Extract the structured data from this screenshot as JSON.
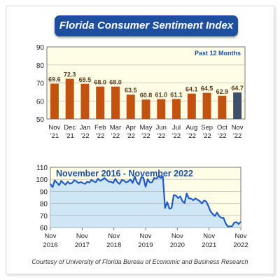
{
  "title": "Florida Consumer Sentiment Index",
  "credit": "Courtesy of University of Florida Bureau of Economic and Business Research",
  "colors": {
    "bar": "#c2520f",
    "bar_latest": "#3d4f6a",
    "panel_bg": "#fffde6",
    "line": "#1f5bc4",
    "area": "#cfe6f7",
    "header_bg": "#1d4f9e",
    "panel_title": "#1d4f9e"
  },
  "chart_data": [
    {
      "type": "bar",
      "annotation": "Past 12 Months",
      "categories": [
        [
          "Nov",
          "'21"
        ],
        [
          "Dec",
          "'21"
        ],
        [
          "Jan",
          "'22"
        ],
        [
          "Feb",
          "'22"
        ],
        [
          "Mar",
          "'22"
        ],
        [
          "Apr",
          "'22"
        ],
        [
          "May",
          "'22"
        ],
        [
          "Jun",
          "'22"
        ],
        [
          "Jul",
          "'22"
        ],
        [
          "Aug",
          "'22"
        ],
        [
          "Sep",
          "'22"
        ],
        [
          "Oct",
          "'22"
        ],
        [
          "Nov",
          "'22"
        ]
      ],
      "values": [
        69.6,
        72.3,
        69.5,
        68.0,
        68.0,
        63.5,
        60.8,
        61.0,
        61.1,
        64.1,
        64.5,
        62.9,
        64.7
      ],
      "value_labels": [
        "69.6",
        "72.3",
        "69.5",
        "68.0",
        "68.0",
        "63.5",
        "60.8",
        "61.0",
        "61.1",
        "64.1",
        "64.5",
        "62.9",
        "64.7"
      ],
      "ylim": [
        50,
        90
      ],
      "yticks": [
        50,
        60,
        70,
        80,
        90
      ],
      "highlight_last": true,
      "grid": true
    },
    {
      "type": "area",
      "title": "November 2016 - November 2022",
      "x_start": "2016-11",
      "x_end": "2022-11",
      "xticks": [
        [
          "Nov",
          "2016"
        ],
        [
          "Nov",
          "2017"
        ],
        [
          "Nov",
          "2018"
        ],
        [
          "Nov",
          "2019"
        ],
        [
          "Nov",
          "2020"
        ],
        [
          "Nov",
          "2021"
        ],
        [
          "Nov",
          "2022"
        ]
      ],
      "ylim": [
        60,
        110
      ],
      "yticks": [
        60,
        70,
        80,
        90,
        100,
        110
      ],
      "grid": true,
      "values": [
        96.2,
        93.5,
        99.1,
        97.3,
        95.2,
        98.8,
        96.9,
        95.6,
        98.1,
        96.4,
        97.0,
        99.2,
        98.4,
        96.9,
        97.8,
        97.0,
        96.3,
        98.0,
        97.3,
        99.5,
        98.3,
        97.6,
        100.6,
        98.8,
        99.7,
        101.1,
        99.4,
        98.0,
        98.1,
        97.0,
        100.4,
        97.6,
        96.3,
        99.4,
        98.9,
        97.5,
        98.3,
        99.8,
        97.0,
        102.3,
        97.6,
        95.7,
        101.8,
        101.3,
        93.9,
        100.1,
        97.4,
        97.6,
        101.2,
        100.5,
        102.6,
        101.2,
        102.4,
        76.3,
        81.1,
        75.6,
        76.2,
        87.0,
        86.5,
        84.5,
        85.8,
        82.0,
        80.3,
        88.2,
        84.2,
        84.0,
        82.7,
        84.2,
        83.1,
        81.9,
        80.0,
        82.4,
        81.7,
        78.0,
        73.5,
        71.2,
        69.6,
        72.3,
        69.5,
        68.0,
        68.0,
        63.5,
        60.8,
        61.0,
        61.1,
        64.1,
        64.5,
        62.9,
        64.7
      ]
    }
  ]
}
